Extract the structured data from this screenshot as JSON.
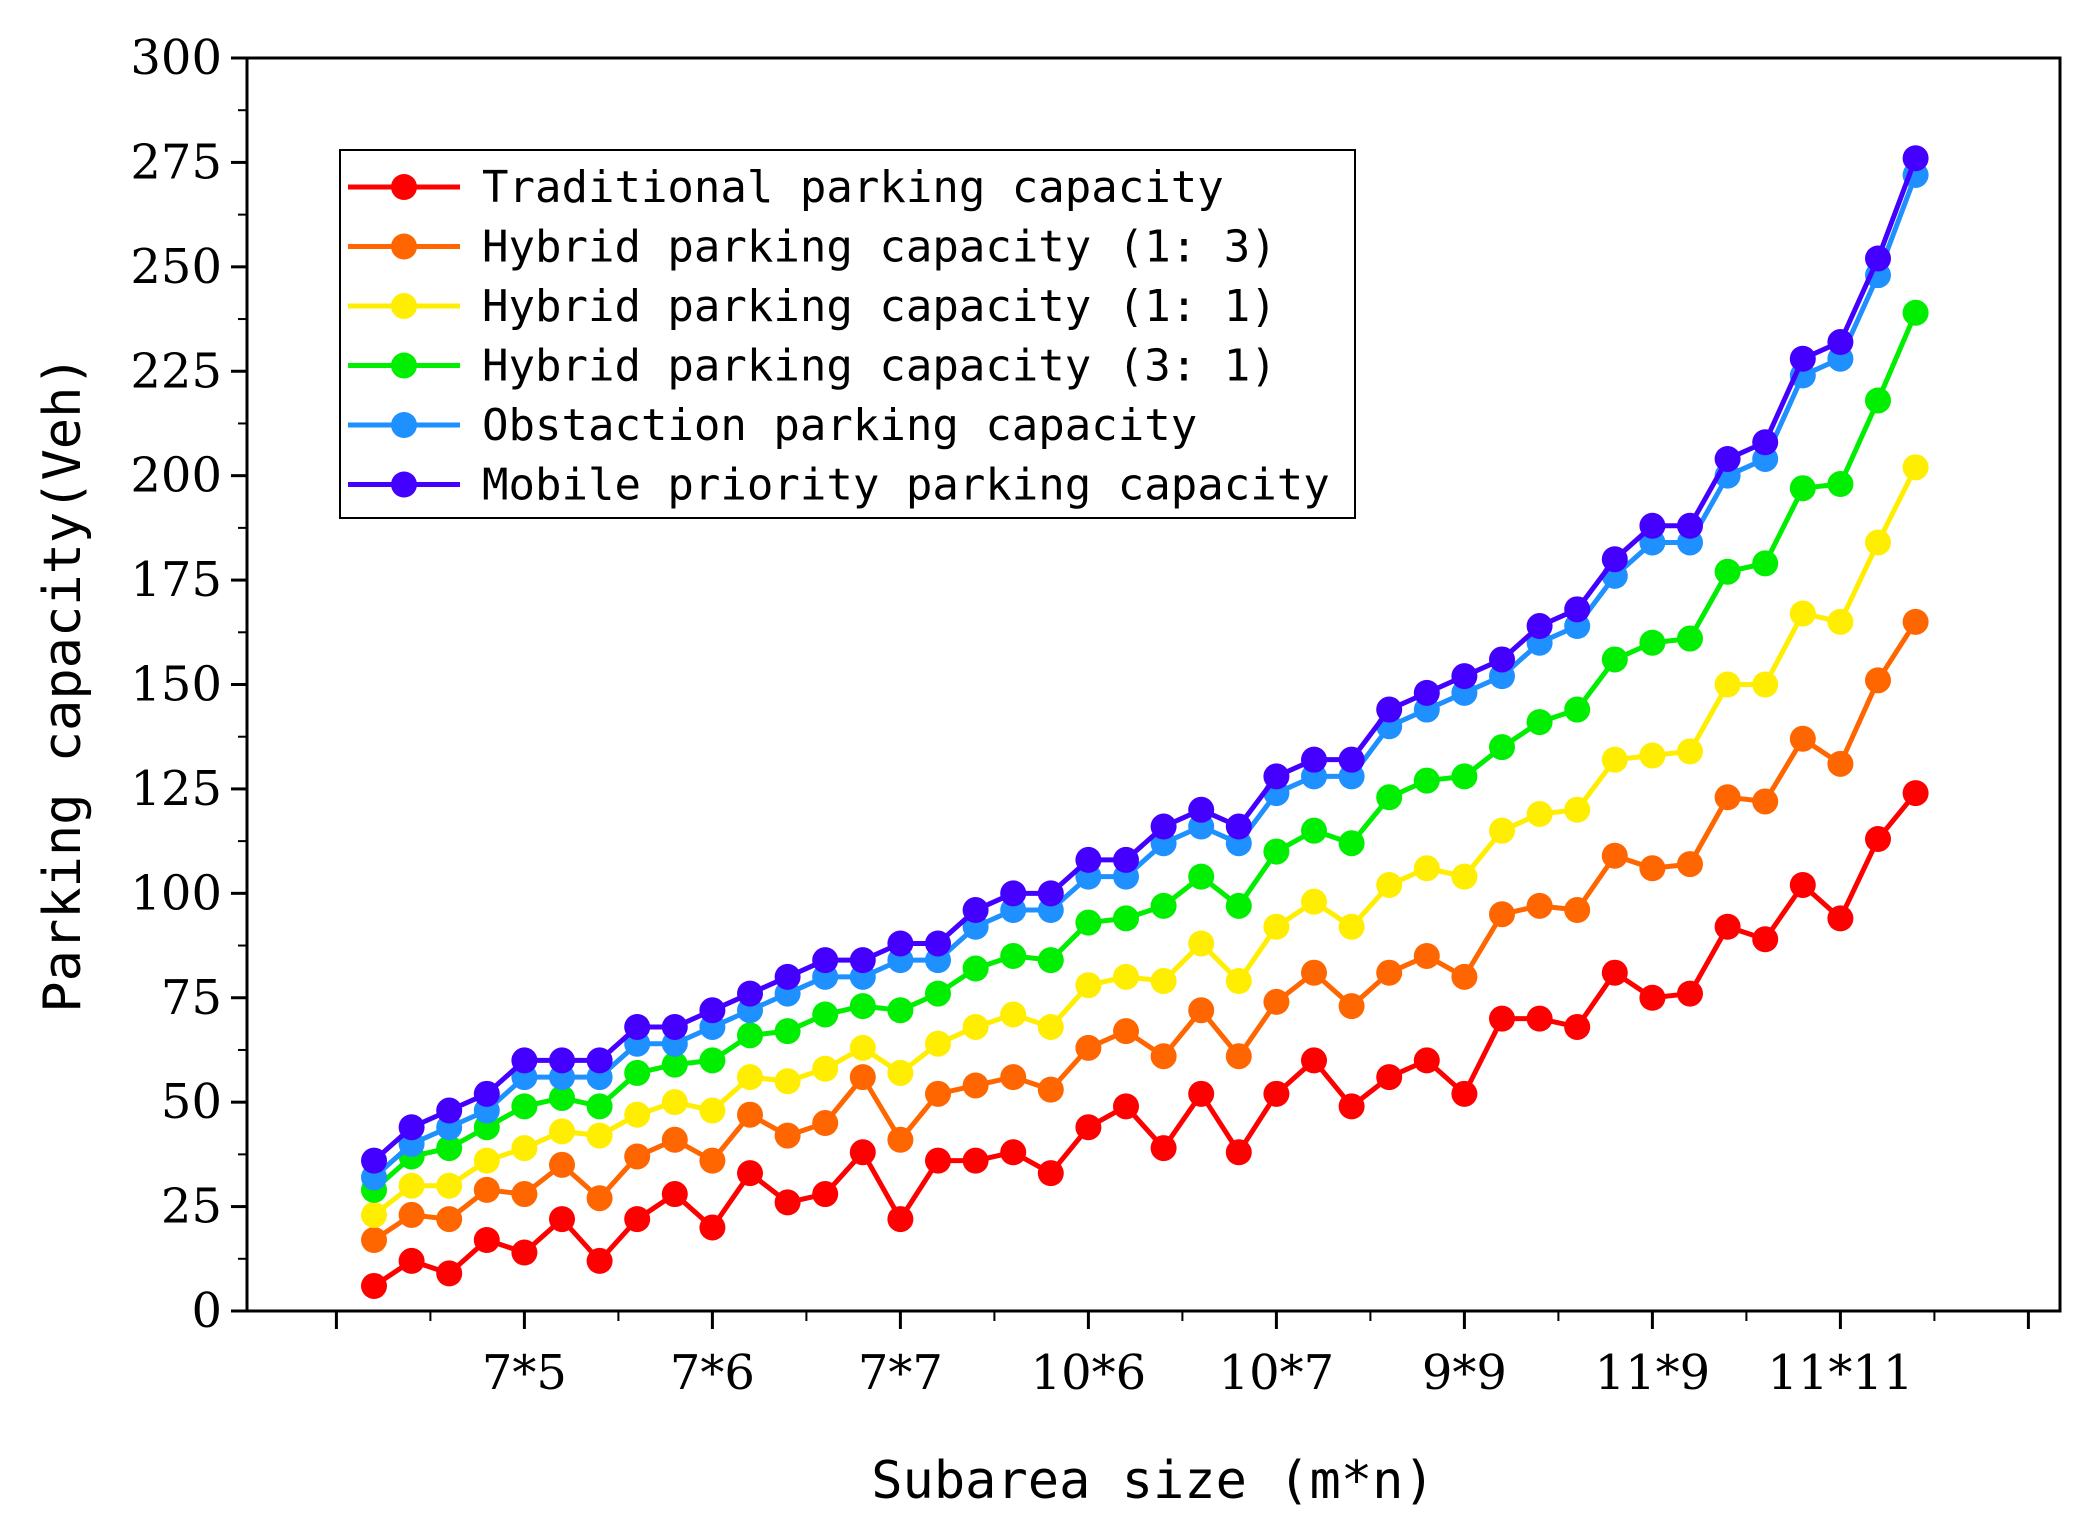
{
  "chart_data": {
    "type": "line",
    "title": "",
    "xlabel": "Subarea size (m*n)",
    "ylabel": "Parking capacity(Veh)",
    "ylim": [
      0,
      300
    ],
    "yticks": [
      0,
      25,
      50,
      75,
      100,
      125,
      150,
      175,
      200,
      225,
      250,
      275,
      300
    ],
    "x_tick_labels": [
      {
        "label": "7*5",
        "index": 4
      },
      {
        "label": "7*6",
        "index": 9
      },
      {
        "label": "7*7",
        "index": 14
      },
      {
        "label": "10*6",
        "index": 19
      },
      {
        "label": "10*7",
        "index": 24
      },
      {
        "label": "9*9",
        "index": 29
      },
      {
        "label": "11*9",
        "index": 34
      },
      {
        "label": "11*11",
        "index": 39
      }
    ],
    "legend_position": "top-left",
    "series": [
      {
        "name": "Traditional parking capacity",
        "color": "#ff0000",
        "values": [
          6,
          12,
          9,
          17,
          14,
          22,
          12,
          22,
          28,
          20,
          33,
          26,
          28,
          38,
          22,
          36,
          36,
          38,
          33,
          44,
          49,
          39,
          52,
          38,
          52,
          60,
          49,
          56,
          60,
          52,
          70,
          70,
          68,
          81,
          75,
          76,
          92,
          89,
          102,
          94,
          113,
          124
        ]
      },
      {
        "name": "Hybrid parking capacity (1: 3)",
        "color": "#ff6600",
        "values": [
          17,
          23,
          22,
          29,
          28,
          35,
          27,
          37,
          41,
          36,
          47,
          42,
          45,
          56,
          41,
          52,
          54,
          56,
          53,
          63,
          67,
          61,
          72,
          61,
          74,
          81,
          73,
          81,
          85,
          80,
          95,
          97,
          96,
          109,
          106,
          107,
          123,
          122,
          137,
          131,
          151,
          165
        ]
      },
      {
        "name": "Hybrid parking capacity (1: 1)",
        "color": "#ffee00",
        "values": [
          23,
          30,
          30,
          36,
          39,
          43,
          42,
          47,
          50,
          48,
          56,
          55,
          58,
          63,
          57,
          64,
          68,
          71,
          68,
          78,
          80,
          79,
          88,
          79,
          92,
          98,
          92,
          102,
          106,
          104,
          115,
          119,
          120,
          132,
          133,
          134,
          150,
          150,
          167,
          165,
          184,
          202
        ]
      },
      {
        "name": "Hybrid parking capacity (3: 1)",
        "color": "#00ee00",
        "values": [
          29,
          37,
          39,
          44,
          49,
          51,
          49,
          57,
          59,
          60,
          66,
          67,
          71,
          73,
          72,
          76,
          82,
          85,
          84,
          93,
          94,
          97,
          104,
          97,
          110,
          115,
          112,
          123,
          127,
          128,
          135,
          141,
          144,
          156,
          160,
          161,
          177,
          179,
          197,
          198,
          218,
          239
        ]
      },
      {
        "name": "Obstaction parking capacity",
        "color": "#1e90ff",
        "values": [
          32,
          40,
          44,
          48,
          56,
          56,
          56,
          64,
          64,
          68,
          72,
          76,
          80,
          80,
          84,
          84,
          92,
          96,
          96,
          104,
          104,
          112,
          116,
          112,
          124,
          128,
          128,
          140,
          144,
          148,
          152,
          160,
          164,
          176,
          184,
          184,
          200,
          204,
          224,
          228,
          248,
          272
        ]
      },
      {
        "name": "Mobile priority parking capacity",
        "color": "#4400ff",
        "values": [
          36,
          44,
          48,
          52,
          60,
          60,
          60,
          68,
          68,
          72,
          76,
          80,
          84,
          84,
          88,
          88,
          96,
          100,
          100,
          108,
          108,
          116,
          120,
          116,
          128,
          132,
          132,
          144,
          148,
          152,
          156,
          164,
          168,
          180,
          188,
          188,
          204,
          208,
          228,
          232,
          252,
          276
        ]
      }
    ]
  }
}
